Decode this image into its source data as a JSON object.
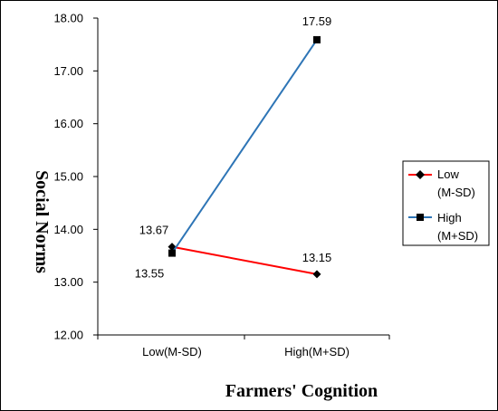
{
  "chart_data": {
    "type": "line",
    "categories": [
      "Low(M-SD)",
      "High(M+SD)"
    ],
    "xlabel": "Farmers' Cognition",
    "ylabel": "Social Norms",
    "ylim": [
      12.0,
      18.0
    ],
    "yticks": [
      "12.00",
      "13.00",
      "14.00",
      "15.00",
      "16.00",
      "17.00",
      "18.00"
    ],
    "grid": false,
    "legend_position": "right",
    "series": [
      {
        "name_line1": "Low",
        "name_line2": "(M-SD)",
        "values": [
          13.67,
          13.15
        ],
        "labels": [
          "13.67",
          "13.15"
        ],
        "color": "#ff0000",
        "marker": "diamond"
      },
      {
        "name_line1": "High",
        "name_line2": "(M+SD)",
        "values": [
          13.55,
          17.59
        ],
        "labels": [
          "13.55",
          "17.59"
        ],
        "color": "#2e75b6",
        "marker": "square"
      }
    ]
  }
}
